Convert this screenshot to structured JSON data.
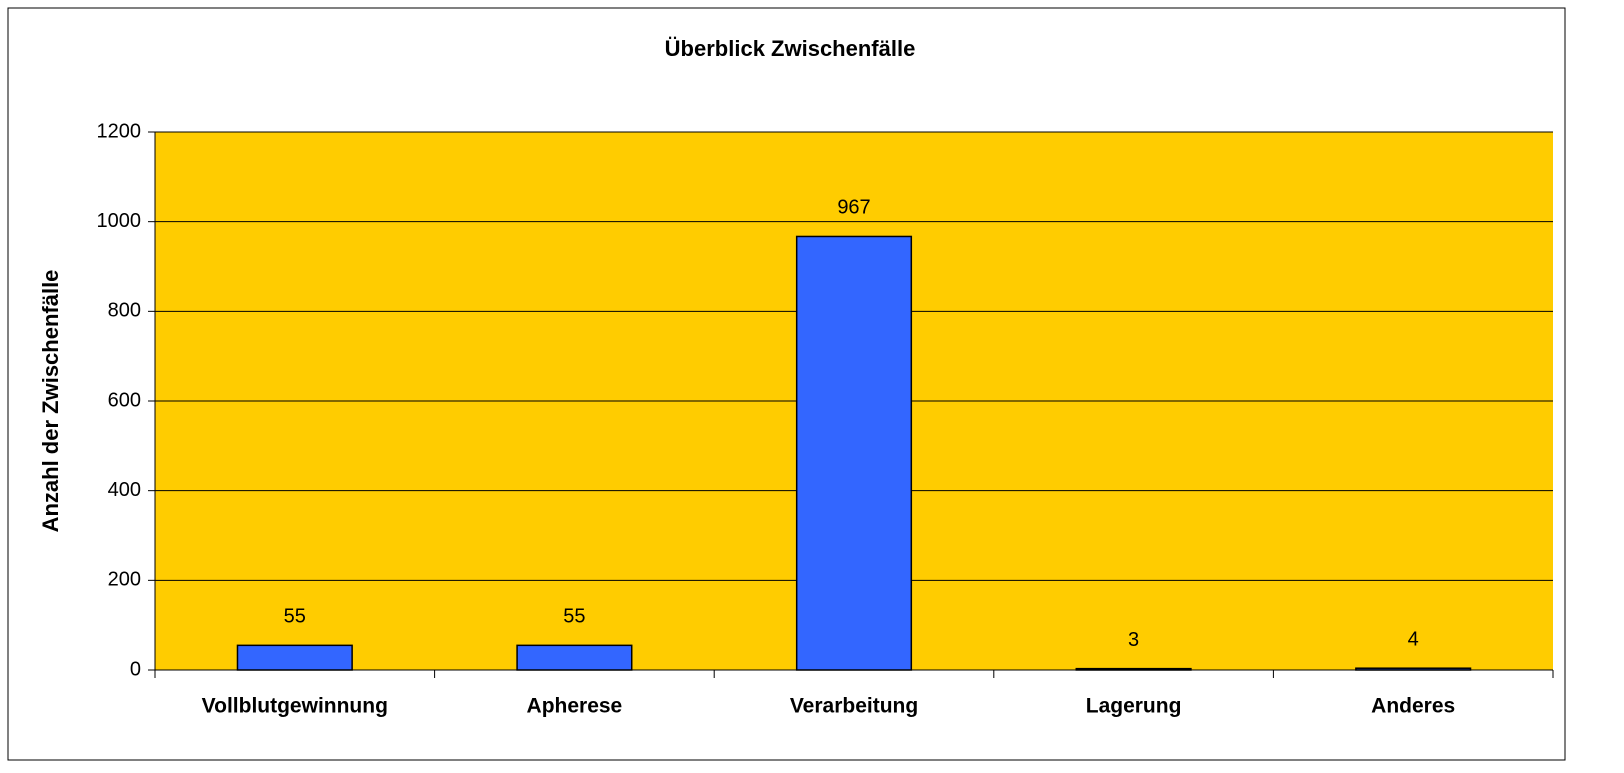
{
  "chart_data": {
    "type": "bar",
    "title": "Überblick Zwischenfälle",
    "y_label": "Anzahl der Zwischenfälle",
    "categories": [
      "Vollblutgewinnung",
      "Apherese",
      "Verarbeitung",
      "Lagerung",
      "Anderes"
    ],
    "values": [
      55,
      55,
      967,
      3,
      4
    ],
    "color": "#3366ff",
    "background": "#ffcc00",
    "ylim": [
      0,
      1200
    ],
    "yticks": [
      0,
      200,
      400,
      600,
      800,
      1000,
      1200
    ],
    "grid": true,
    "data_labels": true
  }
}
